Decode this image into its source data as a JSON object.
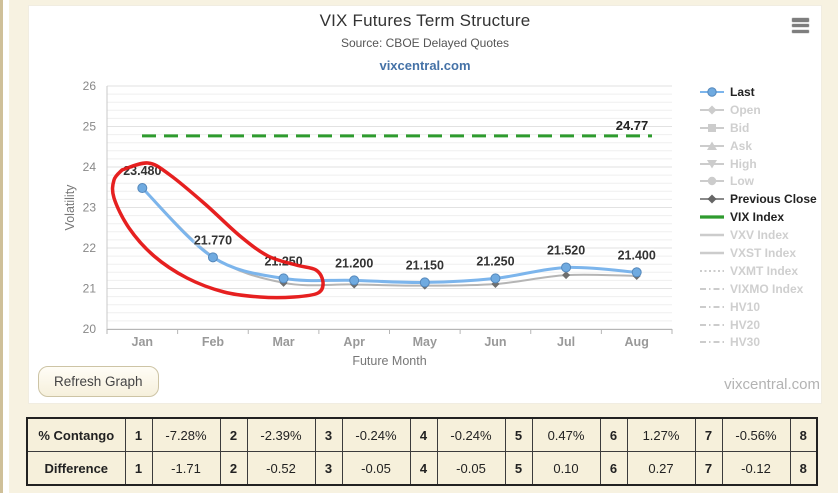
{
  "header": {
    "title": "VIX Futures Term Structure",
    "subtitle": "Source: CBOE Delayed Quotes",
    "link": "vixcentral.com"
  },
  "colors": {
    "last_line": "#7cb5ec",
    "last_marker": "#6faae0",
    "prev_close_line": "#b5b5b5",
    "prev_close_marker": "#6e6e6e",
    "vix_line": "#2e9b2e",
    "annotation_red": "#e51414",
    "grid_minor": "#efefef",
    "grid_major": "#e2e2e2",
    "axis": "#c9c9c9",
    "link_blue": "#4572a7"
  },
  "chart_data": {
    "type": "line",
    "title": "VIX Futures Term Structure",
    "xlabel": "Future Month",
    "ylabel": "Volatility",
    "ylim": [
      20,
      26
    ],
    "y_tick_step": 1,
    "y_minor_step": 0.2,
    "grid": true,
    "legend_position": "right",
    "categories": [
      "Jan",
      "Feb",
      "Mar",
      "Apr",
      "May",
      "Jun",
      "Jul",
      "Aug"
    ],
    "series": [
      {
        "name": "Previous Close",
        "values": [
          23.49,
          21.79,
          21.14,
          21.1,
          21.07,
          21.11,
          21.33,
          21.31
        ],
        "labels": null
      },
      {
        "name": "Last",
        "values": [
          23.48,
          21.77,
          21.25,
          21.2,
          21.15,
          21.25,
          21.52,
          21.4
        ],
        "labels": [
          "23.480",
          "21.770",
          "21.250",
          "21.200",
          "21.150",
          "21.250",
          "21.520",
          "21.400"
        ]
      }
    ],
    "reference_line": {
      "name": "VIX Index",
      "value": 24.77,
      "label": "24.77",
      "style": "dashed"
    },
    "annotation": "hand-drawn red circle looping around the Jan, Feb and Mar data points"
  },
  "legend": {
    "items": [
      {
        "label": "Last",
        "marker": "line-circle",
        "active": true
      },
      {
        "label": "Open",
        "marker": "line-diamond",
        "active": false
      },
      {
        "label": "Bid",
        "marker": "line-square",
        "active": false
      },
      {
        "label": "Ask",
        "marker": "line-triangle-up",
        "active": false
      },
      {
        "label": "High",
        "marker": "line-triangle-down",
        "active": false
      },
      {
        "label": "Low",
        "marker": "line-circle-gray",
        "active": false
      },
      {
        "label": "Previous Close",
        "marker": "line-diamond-dark",
        "active": true
      },
      {
        "label": "VIX Index",
        "marker": "line-green",
        "active": true
      },
      {
        "label": "VXV Index",
        "marker": "line",
        "active": false
      },
      {
        "label": "VXST Index",
        "marker": "line",
        "active": false
      },
      {
        "label": "VXMT Index",
        "marker": "dotted",
        "active": false
      },
      {
        "label": "VIXMO Index",
        "marker": "dashdot",
        "active": false
      },
      {
        "label": "HV10",
        "marker": "dashdot",
        "active": false
      },
      {
        "label": "HV20",
        "marker": "dashdot",
        "active": false
      },
      {
        "label": "HV30",
        "marker": "dashdot",
        "active": false
      }
    ]
  },
  "controls": {
    "refresh_button": "Refresh Graph"
  },
  "watermark": "vixcentral.com",
  "table": {
    "rows": [
      {
        "label": "% Contango",
        "cells": [
          "1",
          "-7.28%",
          "2",
          "-2.39%",
          "3",
          "-0.24%",
          "4",
          "-0.24%",
          "5",
          "0.47%",
          "6",
          "1.27%",
          "7",
          "-0.56%",
          "8"
        ]
      },
      {
        "label": "Difference",
        "cells": [
          "1",
          "-1.71",
          "2",
          "-0.52",
          "3",
          "-0.05",
          "4",
          "-0.05",
          "5",
          "0.10",
          "6",
          "0.27",
          "7",
          "-0.12",
          "8"
        ]
      }
    ]
  }
}
